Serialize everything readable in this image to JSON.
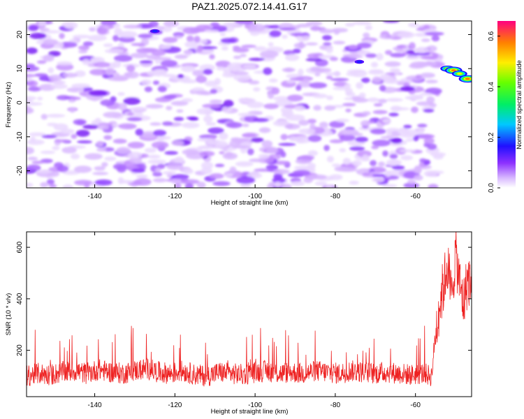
{
  "title": "PAZ1.2025.072.14.41.G17",
  "chart_data": [
    {
      "type": "heatmap",
      "xlabel": "Height of straight line (km)",
      "ylabel": "Frequency (Hz)",
      "xlim": [
        -157,
        -46
      ],
      "ylim": [
        -25,
        24
      ],
      "x_ticks": [
        -140,
        -120,
        -100,
        -80,
        -60
      ],
      "y_ticks": [
        -20,
        -10,
        0,
        10,
        20
      ],
      "grid": false,
      "colorbar": {
        "label": "Normalized spectral amplitude",
        "range": [
          0,
          0.66
        ],
        "ticks": [
          0.0,
          0.2,
          0.4,
          0.6
        ],
        "tick_labels": [
          "0.0",
          "0.2",
          "0.4",
          "0.6"
        ]
      },
      "data_extent_km": [
        -157,
        -54
      ],
      "hotspots": [
        {
          "x": -52,
          "y": 10,
          "value": 0.45
        },
        {
          "x": -50.5,
          "y": 9.5,
          "value": 0.6
        },
        {
          "x": -49,
          "y": 8.5,
          "value": 0.5
        },
        {
          "x": -47,
          "y": 7,
          "value": 0.62
        },
        {
          "x": -74,
          "y": 12,
          "value": 0.2
        },
        {
          "x": -125,
          "y": 21,
          "value": 0.2
        }
      ]
    },
    {
      "type": "line",
      "xlabel": "Height of straight line (km)",
      "ylabel": "SNR (10 * v/v)",
      "xlim": [
        -157,
        -46
      ],
      "ylim": [
        20,
        660
      ],
      "x_ticks": [
        -140,
        -120,
        -100,
        -80,
        -60
      ],
      "y_ticks": [
        200,
        400,
        600
      ],
      "grid": false,
      "series": [
        {
          "color": "#ee2222",
          "x": [
            -157,
            -154,
            -151,
            -148,
            -145,
            -142,
            -139,
            -136,
            -133,
            -130,
            -127,
            -124,
            -121,
            -118,
            -115,
            -112,
            -109,
            -106,
            -103,
            -100,
            -97,
            -94,
            -91,
            -88,
            -85,
            -82,
            -79,
            -76,
            -73,
            -70,
            -67,
            -64,
            -61,
            -58,
            -56,
            -55,
            -54,
            -53,
            -52,
            -51,
            -50,
            -49,
            -48,
            -47,
            -46
          ],
          "y": [
            100,
            110,
            105,
            115,
            120,
            110,
            125,
            115,
            110,
            120,
            130,
            115,
            110,
            120,
            105,
            100,
            115,
            110,
            105,
            115,
            120,
            110,
            115,
            110,
            120,
            115,
            110,
            120,
            115,
            110,
            115,
            110,
            105,
            110,
            100,
            260,
            380,
            450,
            540,
            400,
            580,
            460,
            380,
            480,
            450
          ]
        }
      ]
    }
  ]
}
